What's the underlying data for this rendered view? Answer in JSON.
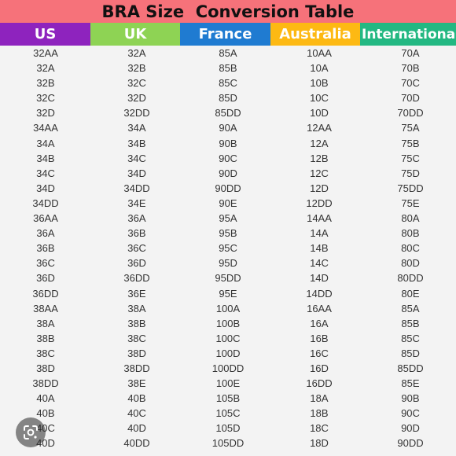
{
  "title": "BRA Size  Conversion Table",
  "columns": [
    {
      "label": "US",
      "color": "#8e23be"
    },
    {
      "label": "UK",
      "color": "#8ed354"
    },
    {
      "label": "France",
      "color": "#1f7bd1"
    },
    {
      "label": "Australia",
      "color": "#fdb913"
    },
    {
      "label": "International",
      "color": "#23b882"
    }
  ],
  "rows": [
    [
      "32AA",
      "32A",
      "85A",
      "10AA",
      "70A"
    ],
    [
      "32A",
      "32B",
      "85B",
      "10A",
      "70B"
    ],
    [
      "32B",
      "32C",
      "85C",
      "10B",
      "70C"
    ],
    [
      "32C",
      "32D",
      "85D",
      "10C",
      "70D"
    ],
    [
      "32D",
      "32DD",
      "85DD",
      "10D",
      "70DD"
    ],
    [
      "34AA",
      "34A",
      "90A",
      "12AA",
      "75A"
    ],
    [
      "34A",
      "34B",
      "90B",
      "12A",
      "75B"
    ],
    [
      "34B",
      "34C",
      "90C",
      "12B",
      "75C"
    ],
    [
      "34C",
      "34D",
      "90D",
      "12C",
      "75D"
    ],
    [
      "34D",
      "34DD",
      "90DD",
      "12D",
      "75DD"
    ],
    [
      "34DD",
      "34E",
      "90E",
      "12DD",
      "75E"
    ],
    [
      "36AA",
      "36A",
      "95A",
      "14AA",
      "80A"
    ],
    [
      "36A",
      "36B",
      "95B",
      "14A",
      "80B"
    ],
    [
      "36B",
      "36C",
      "95C",
      "14B",
      "80C"
    ],
    [
      "36C",
      "36D",
      "95D",
      "14C",
      "80D"
    ],
    [
      "36D",
      "36DD",
      "95DD",
      "14D",
      "80DD"
    ],
    [
      "36DD",
      "36E",
      "95E",
      "14DD",
      "80E"
    ],
    [
      "38AA",
      "38A",
      "100A",
      "16AA",
      "85A"
    ],
    [
      "38A",
      "38B",
      "100B",
      "16A",
      "85B"
    ],
    [
      "38B",
      "38C",
      "100C",
      "16B",
      "85C"
    ],
    [
      "38C",
      "38D",
      "100D",
      "16C",
      "85D"
    ],
    [
      "38D",
      "38DD",
      "100DD",
      "16D",
      "85DD"
    ],
    [
      "38DD",
      "38E",
      "100E",
      "16DD",
      "85E"
    ],
    [
      "40A",
      "40B",
      "105B",
      "18A",
      "90B"
    ],
    [
      "40B",
      "40C",
      "105C",
      "18B",
      "90C"
    ],
    [
      "40C",
      "40D",
      "105D",
      "18C",
      "90D"
    ],
    [
      "40D",
      "40DD",
      "105DD",
      "18D",
      "90DD"
    ]
  ],
  "lens_icon": "google-lens-icon"
}
